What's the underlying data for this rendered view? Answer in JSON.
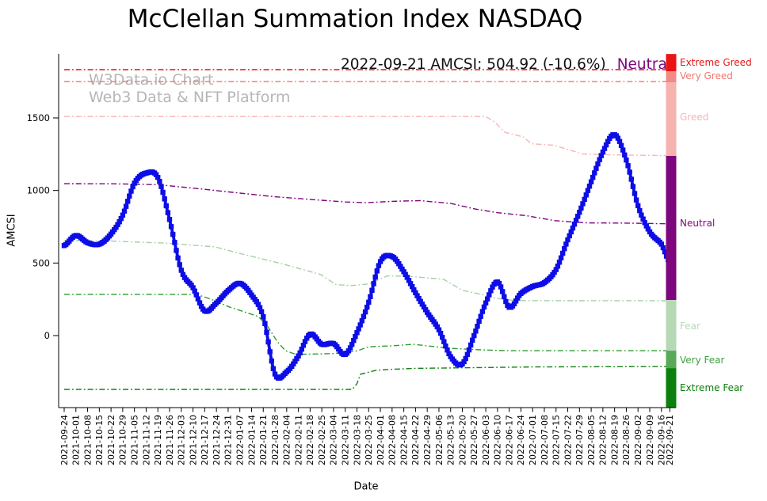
{
  "annotation": {
    "text": "2022-09-21 AMCSI: 504.92 (-10.6%)",
    "sentiment": "Neutral",
    "sentiment_color": "#7d067d"
  },
  "watermark": {
    "line1": "W3Data.io Chart",
    "line2": "Web3 Data & NFT Platform"
  },
  "chart_data": {
    "type": "line",
    "title": "McClellan Summation Index NASDAQ",
    "xlabel": "Date",
    "ylabel": "AMCSI",
    "ylim": [
      -496,
      1941
    ],
    "y_ticks": [
      0,
      500,
      1000,
      1500
    ],
    "grid": false,
    "dates": [
      "2021-09-24",
      "2021-10-01",
      "2021-10-08",
      "2021-10-15",
      "2021-10-22",
      "2021-10-29",
      "2021-11-05",
      "2021-11-12",
      "2021-11-19",
      "2021-11-26",
      "2021-12-03",
      "2021-12-10",
      "2021-12-17",
      "2021-12-24",
      "2021-12-31",
      "2022-01-07",
      "2022-01-14",
      "2022-01-21",
      "2022-01-28",
      "2022-02-04",
      "2022-02-11",
      "2022-02-18",
      "2022-02-25",
      "2022-03-04",
      "2022-03-11",
      "2022-03-18",
      "2022-03-25",
      "2022-04-01",
      "2022-04-08",
      "2022-04-15",
      "2022-04-22",
      "2022-04-29",
      "2022-05-06",
      "2022-05-13",
      "2022-05-20",
      "2022-05-27",
      "2022-06-03",
      "2022-06-10",
      "2022-06-17",
      "2022-06-24",
      "2022-07-01",
      "2022-07-08",
      "2022-07-15",
      "2022-07-22",
      "2022-07-29",
      "2022-08-05",
      "2022-08-12",
      "2022-08-19",
      "2022-08-26",
      "2022-09-02",
      "2022-09-09",
      "2022-09-16",
      "2022-09-21"
    ],
    "main_series": {
      "name": "AMCSI",
      "color": "#0d0de6",
      "marker": "square",
      "values": [
        620,
        690,
        640,
        630,
        700,
        830,
        1050,
        1120,
        1090,
        800,
        450,
        330,
        170,
        225,
        310,
        360,
        280,
        130,
        -265,
        -250,
        -140,
        10,
        -60,
        -55,
        -130,
        20,
        230,
        510,
        545,
        440,
        295,
        160,
        40,
        -145,
        -195,
        0,
        225,
        370,
        195,
        290,
        338,
        365,
        455,
        660,
        850,
        1060,
        1265,
        1385,
        1210,
        895,
        715,
        630,
        504.92
      ]
    },
    "latest": {
      "date": "2022-09-21",
      "value": 504.92,
      "change_pct": -10.6,
      "sentiment": "Neutral"
    },
    "threshold_lines": [
      {
        "name": "extreme-greed-line",
        "color": "#e01414",
        "points": [
          [
            0,
            1833
          ],
          [
            51.714,
            1833
          ]
        ]
      },
      {
        "name": "very-greed-line",
        "color": "#fb7a7a",
        "points": [
          [
            0,
            1751
          ],
          [
            51.714,
            1751
          ]
        ]
      },
      {
        "name": "greed-line",
        "color": "#f9b4b4",
        "points": [
          [
            0,
            1510
          ],
          [
            36.0,
            1510
          ],
          [
            36.8,
            1470
          ],
          [
            37.6,
            1402
          ],
          [
            39.2,
            1369
          ],
          [
            39.9,
            1322
          ],
          [
            41.8,
            1312
          ],
          [
            44.3,
            1252
          ],
          [
            46.5,
            1246
          ],
          [
            51.714,
            1240
          ]
        ]
      },
      {
        "name": "neutral-line",
        "color": "#7d067d",
        "points": [
          [
            0,
            1047
          ],
          [
            4,
            1046
          ],
          [
            8,
            1040
          ],
          [
            12,
            1008
          ],
          [
            15,
            982
          ],
          [
            18,
            957
          ],
          [
            21.6,
            935
          ],
          [
            24,
            921
          ],
          [
            25.7,
            916
          ],
          [
            28.4,
            926
          ],
          [
            30.4,
            930
          ],
          [
            33,
            911
          ],
          [
            35.1,
            872
          ],
          [
            37,
            847
          ],
          [
            39.5,
            826
          ],
          [
            41.9,
            792
          ],
          [
            44.6,
            777
          ],
          [
            48,
            775
          ],
          [
            51.714,
            770
          ]
        ]
      },
      {
        "name": "fear-line",
        "color": "#a6d0a6",
        "points": [
          [
            0,
            655
          ],
          [
            4,
            651
          ],
          [
            9,
            636
          ],
          [
            12.9,
            611
          ],
          [
            15,
            566
          ],
          [
            18.5,
            497
          ],
          [
            21.9,
            421
          ],
          [
            23.2,
            352
          ],
          [
            24.5,
            344
          ],
          [
            26,
            356
          ],
          [
            27.6,
            412
          ],
          [
            29.5,
            408
          ],
          [
            32.4,
            388
          ],
          [
            34,
            312
          ],
          [
            35.5,
            286
          ],
          [
            37,
            256
          ],
          [
            38.6,
            241
          ],
          [
            51.714,
            240
          ]
        ]
      },
      {
        "name": "very-fear-line",
        "color": "#2f9e2f",
        "points": [
          [
            0,
            284
          ],
          [
            11.3,
            284
          ],
          [
            12.5,
            252
          ],
          [
            14,
            200
          ],
          [
            16.6,
            131
          ],
          [
            17.4,
            60
          ],
          [
            18.2,
            -42
          ],
          [
            18.9,
            -104
          ],
          [
            19.8,
            -130
          ],
          [
            23,
            -124
          ],
          [
            25,
            -106
          ],
          [
            26,
            -77
          ],
          [
            28,
            -71
          ],
          [
            29.8,
            -60
          ],
          [
            31,
            -71
          ],
          [
            33,
            -88
          ],
          [
            36,
            -100
          ],
          [
            38,
            -104
          ],
          [
            51.714,
            -104
          ]
        ]
      },
      {
        "name": "extreme-fear-line",
        "color": "#128112",
        "points": [
          [
            0,
            -371
          ],
          [
            24.6,
            -371
          ],
          [
            25.0,
            -331
          ],
          [
            25.3,
            -267
          ],
          [
            26.6,
            -240
          ],
          [
            27.5,
            -234
          ],
          [
            30,
            -226
          ],
          [
            34,
            -222
          ],
          [
            40,
            -216
          ],
          [
            51.714,
            -213
          ]
        ]
      }
    ],
    "zones": [
      {
        "label": "Extreme Greed",
        "bar_color": "#ec1313",
        "label_color": "#e31616",
        "top": 1941,
        "bottom": 1822,
        "label_v": 1881
      },
      {
        "label": "Very Greed",
        "bar_color": "#f28b84",
        "label_color": "#f0756d",
        "top": 1822,
        "bottom": 1745,
        "label_v": 1789
      },
      {
        "label": "Greed",
        "bar_color": "#f5b2ae",
        "label_color": "#f6b6b2",
        "top": 1745,
        "bottom": 1238,
        "label_v": 1505
      },
      {
        "label": "Neutral",
        "bar_color": "#7d067d",
        "label_color": "#7d067d",
        "top": 1238,
        "bottom": 245,
        "label_v": 774
      },
      {
        "label": "Fear",
        "bar_color": "#b5d8b5",
        "label_color": "#b9d9b9",
        "top": 245,
        "bottom": -104,
        "label_v": 65
      },
      {
        "label": "Very Fear",
        "bar_color": "#58a958",
        "label_color": "#3da23d",
        "top": -104,
        "bottom": -224,
        "label_v": -169
      },
      {
        "label": "Extreme Fear",
        "bar_color": "#0c800c",
        "label_color": "#0c7d0c",
        "top": -224,
        "bottom": -496,
        "label_v": -360
      }
    ]
  }
}
